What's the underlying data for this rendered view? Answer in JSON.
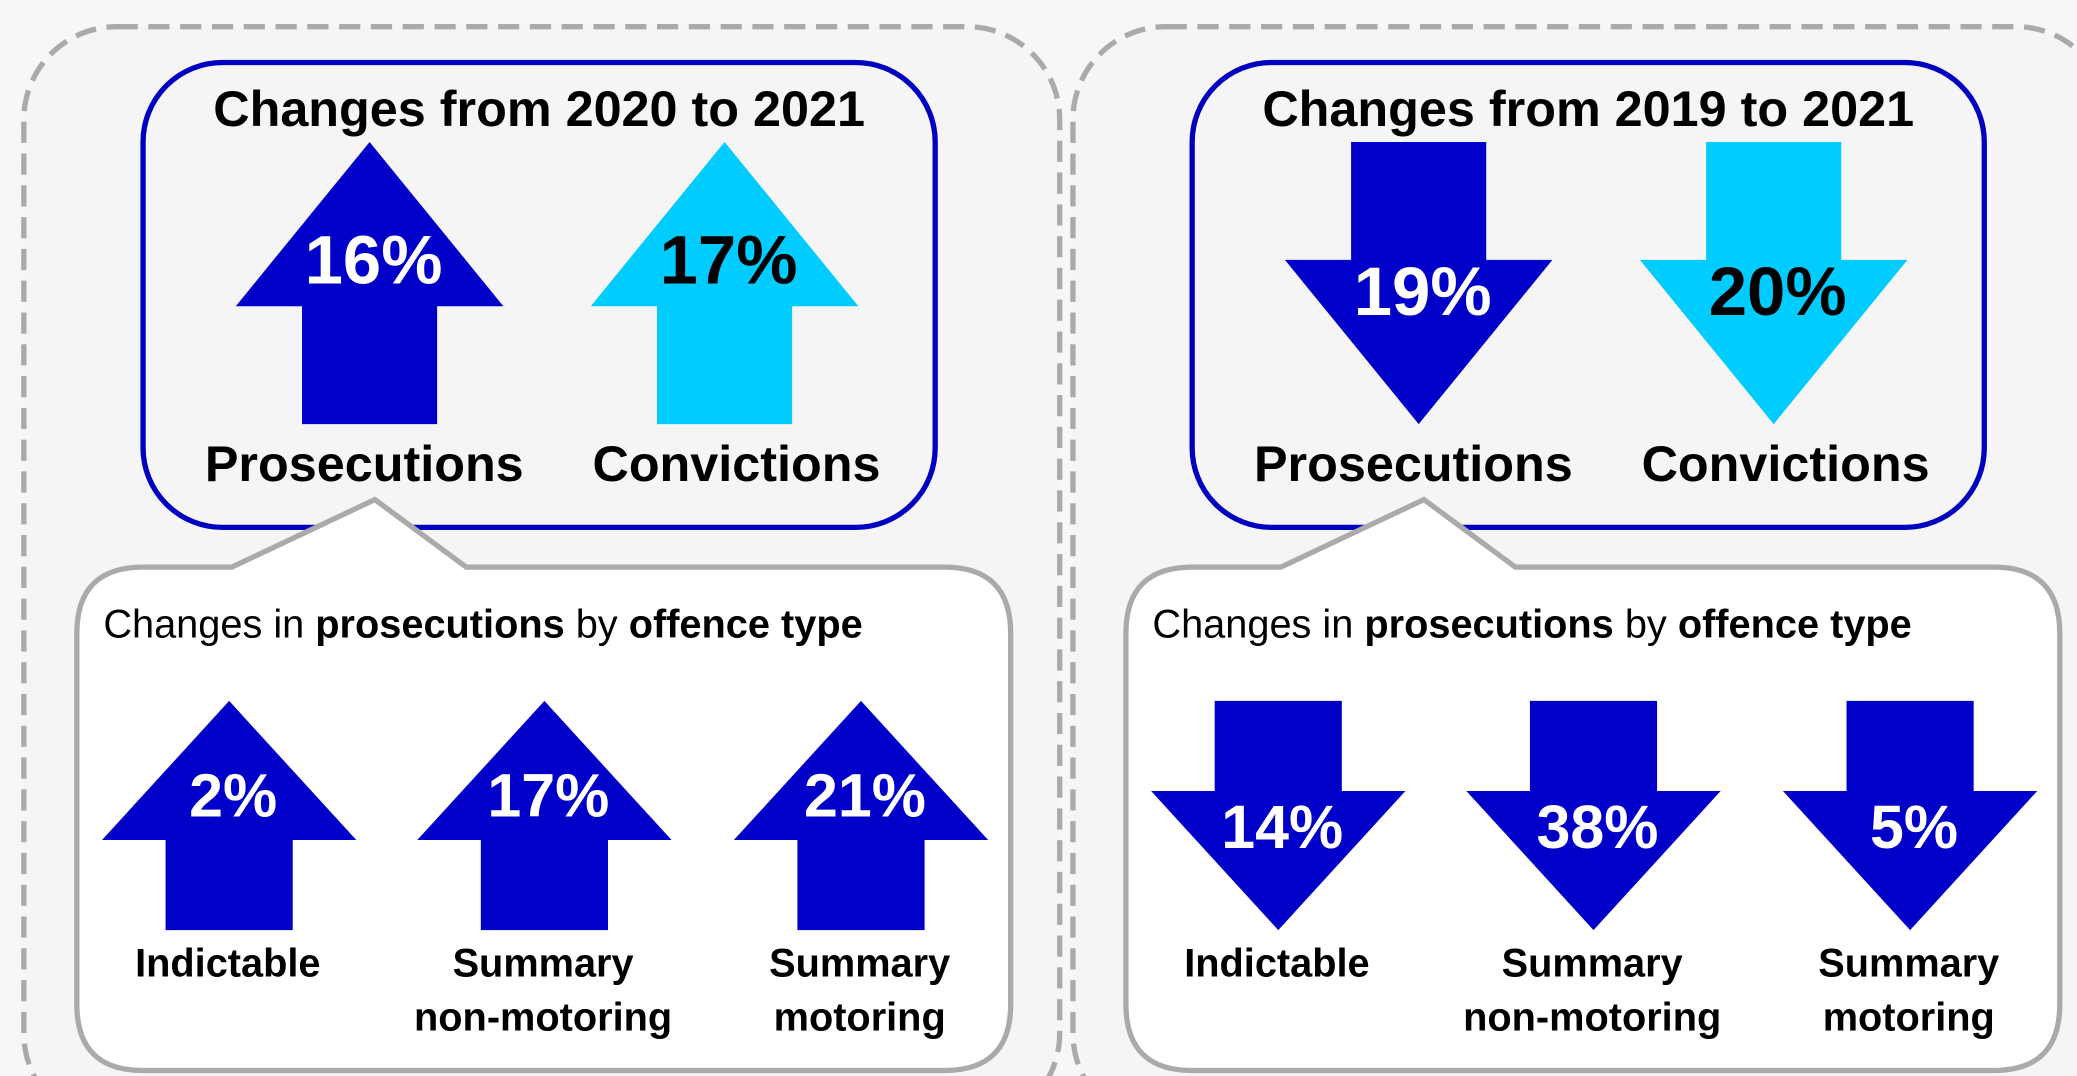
{
  "panels": [
    {
      "title": "Changes from 2020 to 2021",
      "direction": "up",
      "main": [
        {
          "label": "Prosecutions",
          "change": "16%",
          "color": "#0000c8",
          "text_color": "#ffffff"
        },
        {
          "label": "Convictions",
          "change": "17%",
          "color": "#00ccff",
          "text_color": "#000000"
        }
      ],
      "subtitle": [
        {
          "text": "Changes in ",
          "bold": false
        },
        {
          "text": "prosecutions",
          "bold": true
        },
        {
          "text": " by ",
          "bold": false
        },
        {
          "text": "offence type",
          "bold": true
        }
      ],
      "offence_color": "#0000c8",
      "offence_types": [
        {
          "lines": [
            "Indictable"
          ],
          "change": "2%"
        },
        {
          "lines": [
            "Summary",
            "non-motoring"
          ],
          "change": "17%"
        },
        {
          "lines": [
            "Summary",
            "motoring"
          ],
          "change": "21%"
        }
      ]
    },
    {
      "title": "Changes from 2019 to 2021",
      "direction": "down",
      "main": [
        {
          "label": "Prosecutions",
          "change": "19%",
          "color": "#0000c8",
          "text_color": "#ffffff"
        },
        {
          "label": "Convictions",
          "change": "20%",
          "color": "#00ccff",
          "text_color": "#000000"
        }
      ],
      "subtitle": [
        {
          "text": "Changes in ",
          "bold": false
        },
        {
          "text": "prosecutions",
          "bold": true
        },
        {
          "text": " by ",
          "bold": false
        },
        {
          "text": "offence type",
          "bold": true
        }
      ],
      "offence_color": "#0000c8",
      "offence_types": [
        {
          "lines": [
            "Indictable"
          ],
          "change": "14%"
        },
        {
          "lines": [
            "Summary",
            "non-motoring"
          ],
          "change": "38%"
        },
        {
          "lines": [
            "Summary",
            "motoring"
          ],
          "change": "5%"
        }
      ]
    }
  ]
}
